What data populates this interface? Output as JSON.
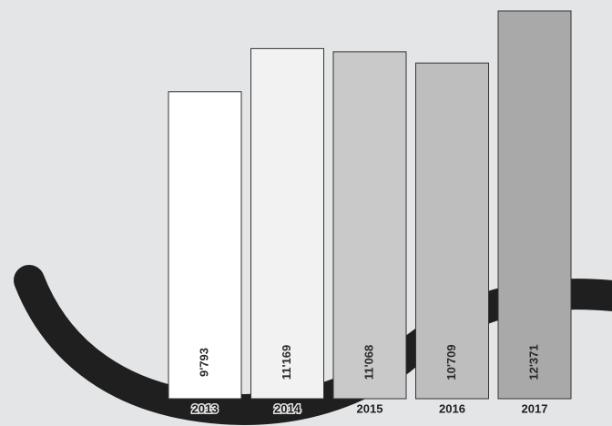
{
  "chart_data": {
    "type": "bar",
    "categories": [
      "2013",
      "2014",
      "2015",
      "2016",
      "2017"
    ],
    "values": [
      9793,
      11169,
      11068,
      10709,
      12371
    ],
    "value_labels": [
      "9'793",
      "11'169",
      "11'068",
      "10'709",
      "12'371"
    ],
    "colors": [
      "#ffffff",
      "#f2f2f2",
      "#c9c9c9",
      "#bebebe",
      "#a9a9a9"
    ]
  }
}
